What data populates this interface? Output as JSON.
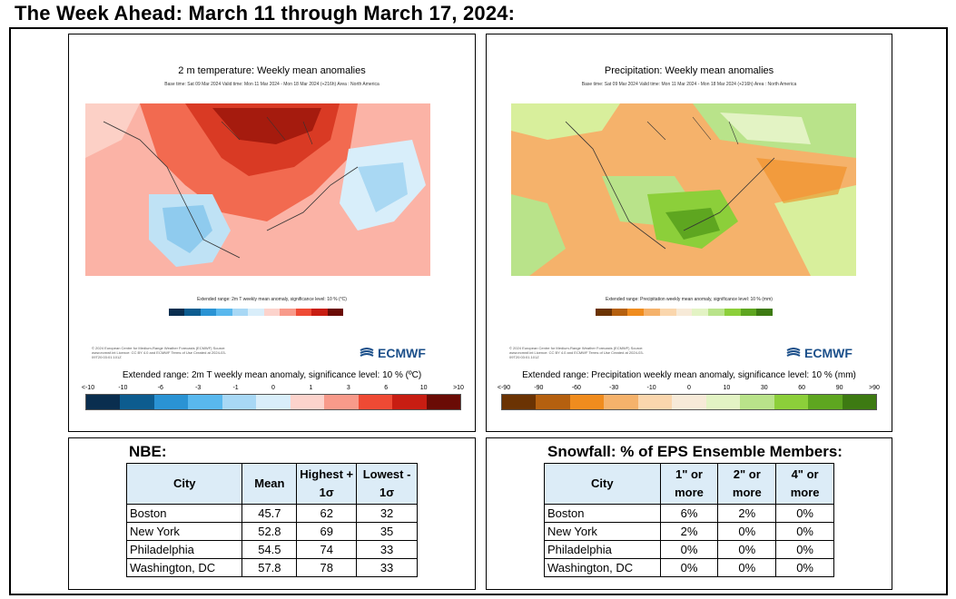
{
  "page_title": "The Week Ahead: March 11 through March 17, 2024:",
  "temperature_panel": {
    "title": "2 m temperature: Weekly mean anomalies",
    "subtitle": "Base time: Sat 09 Mar 2024 Valid time: Mon 11 Mar 2024 - Mon 18 Mar 2024 (+216h) Area : North America",
    "small_caption": "Extended range: 2m T weekly mean anomaly, significance level: 10 % (°C)",
    "fineprint": "© 2024 European Centre for Medium-Range Weather Forecasts (ECMWF) Source: www.ecmwf.int Licence: CC BY 4.0 and ECMWF Terms of Use Created at 2024-03-09T20:03:01.101Z",
    "logo_text": "ECMWF",
    "legend_caption": "Extended range: 2m T weekly mean anomaly, significance level: 10 % (ºC)",
    "tick_labels": [
      "<-10",
      "-10",
      "-6",
      "-3",
      "-1",
      "0",
      "1",
      "3",
      "6",
      "10",
      ">10"
    ],
    "colors": [
      "#0a2e4f",
      "#0d5c8f",
      "#2a93d4",
      "#59b8ee",
      "#a8d8f5",
      "#d9eefa",
      "#fcd3cc",
      "#f89a8a",
      "#ef4a34",
      "#c81d12",
      "#6a0b05"
    ]
  },
  "precip_panel": {
    "title": "Precipitation: Weekly mean anomalies",
    "subtitle": "Base time: Sat 09 Mar 2024 Valid time: Mon 11 Mar 2024 - Mon 18 Mar 2024 (+216h) Area : North America",
    "small_caption": "Extended range: Precipitation weekly mean anomaly, significance level: 10 % (mm)",
    "fineprint": "© 2024 European Centre for Medium-Range Weather Forecasts (ECMWF) Source: www.ecmwf.int Licence: CC BY 4.0 and ECMWF Terms of Use Created at 2024-03-09T20:03:01.101Z",
    "logo_text": "ECMWF",
    "legend_caption": "Extended range: Precipitation weekly mean anomaly, significance level: 10 % (mm)",
    "tick_labels": [
      "<-90",
      "-90",
      "-60",
      "-30",
      "-10",
      "0",
      "10",
      "30",
      "60",
      "90",
      ">90"
    ],
    "colors": [
      "#6b3303",
      "#b5600f",
      "#f08c1e",
      "#f5b26b",
      "#fad6ad",
      "#f7ead8",
      "#e3f3c4",
      "#b9e38a",
      "#8ccf3a",
      "#5ea620",
      "#3d7a12"
    ]
  },
  "nbe": {
    "title": "NBE:",
    "headers": {
      "city": "City",
      "mean": "Mean",
      "high_1": "Highest +",
      "high_2": "1σ",
      "low_1": "Lowest -",
      "low_2": "1σ"
    },
    "rows": [
      {
        "city": "Boston",
        "mean": "45.7",
        "high": "62",
        "low": "32"
      },
      {
        "city": "New York",
        "mean": "52.8",
        "high": "69",
        "low": "35"
      },
      {
        "city": "Philadelphia",
        "mean": "54.5",
        "high": "74",
        "low": "33"
      },
      {
        "city": "Washington, DC",
        "mean": "57.8",
        "high": "78",
        "low": "33"
      }
    ]
  },
  "snowfall": {
    "title": "Snowfall: % of EPS Ensemble Members:",
    "headers": {
      "city": "City",
      "c1_1": "1\" or",
      "c1_2": "more",
      "c2_1": "2\" or",
      "c2_2": "more",
      "c3_1": "4\" or",
      "c3_2": "more"
    },
    "rows": [
      {
        "city": "Boston",
        "one": "6%",
        "two": "2%",
        "four": "0%"
      },
      {
        "city": "New York",
        "one": "2%",
        "two": "0%",
        "four": "0%"
      },
      {
        "city": "Philadelphia",
        "one": "0%",
        "two": "0%",
        "four": "0%"
      },
      {
        "city": "Washington, DC",
        "one": "0%",
        "two": "0%",
        "four": "0%"
      }
    ]
  }
}
